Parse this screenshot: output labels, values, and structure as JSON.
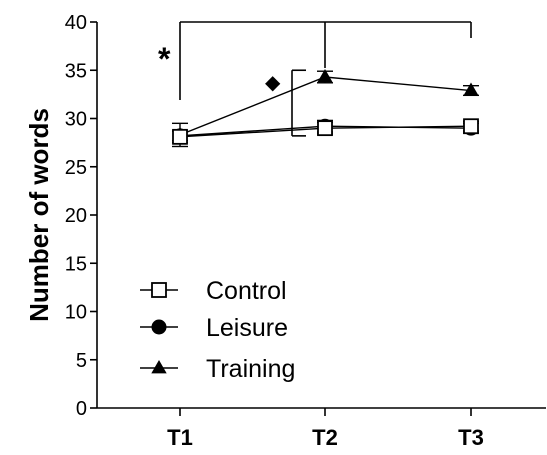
{
  "chart_data": {
    "type": "line",
    "title": "",
    "xlabel": "",
    "ylabel": "Number of words",
    "categories": [
      "T1",
      "T2",
      "T3"
    ],
    "ylim": [
      0,
      40
    ],
    "yticks": [
      "0",
      "5",
      "10",
      "15",
      "20",
      "25",
      "30",
      "35",
      "40"
    ],
    "grid": false,
    "legend_position": "bottom-left",
    "series": [
      {
        "name": "Control",
        "values": [
          28.1,
          29.0,
          29.2
        ],
        "error": [
          0.6,
          0.6,
          0.5
        ],
        "marker": "open-square",
        "color": "#000000"
      },
      {
        "name": "Leisure",
        "values": [
          28.2,
          29.2,
          29.0
        ],
        "error": [
          0.5,
          0.6,
          0.5
        ],
        "marker": "filled-circle",
        "color": "#000000"
      },
      {
        "name": "Training",
        "values": [
          28.3,
          34.3,
          32.9
        ],
        "error": [
          1.2,
          0.6,
          0.5
        ],
        "marker": "filled-triangle",
        "color": "#000000"
      }
    ],
    "annotations": {
      "star": "*",
      "diamond": "◆"
    }
  }
}
